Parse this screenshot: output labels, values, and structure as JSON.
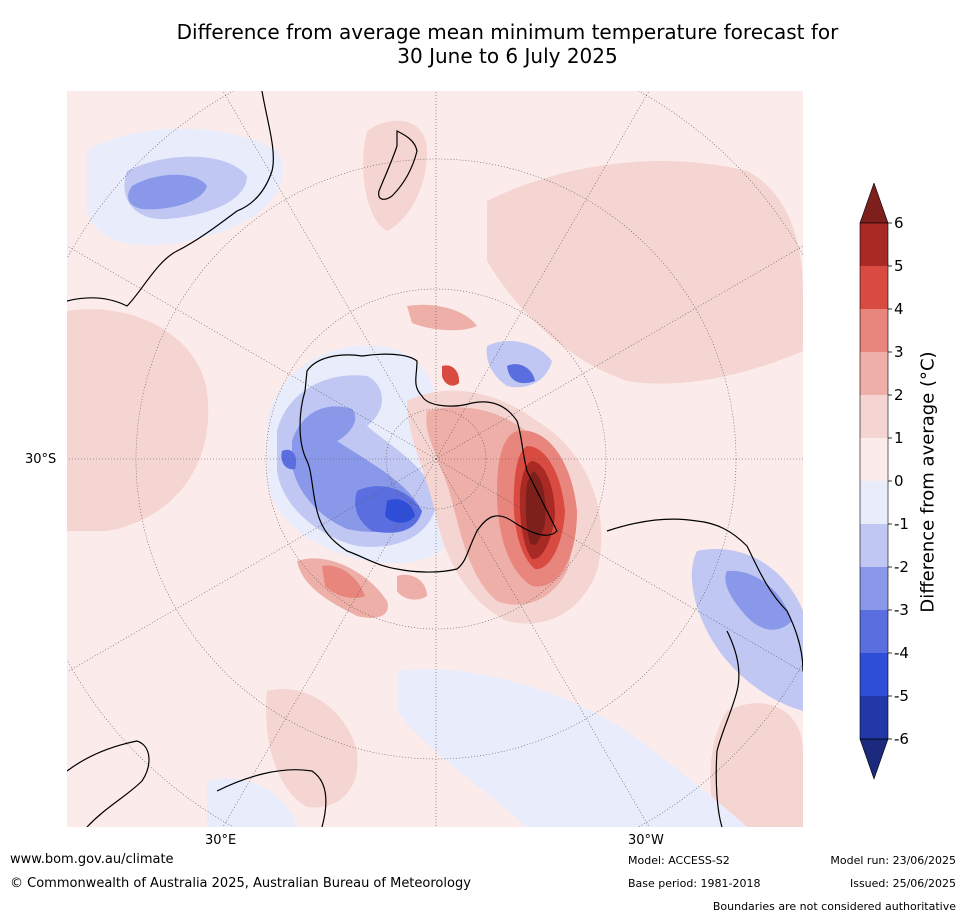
{
  "title": {
    "line1": "Difference from average mean minimum temperature forecast for",
    "line2": "30 June to 6 July 2025"
  },
  "axes": {
    "lat_label": "30°S",
    "lon_label_left": "30°E",
    "lon_label_right": "30°W"
  },
  "colorbar": {
    "label": "Difference from average (°C)",
    "ticks": [
      "6",
      "5",
      "4",
      "3",
      "2",
      "1",
      "0",
      "-1",
      "-2",
      "-3",
      "-4",
      "-5",
      "-6"
    ],
    "colors": [
      "#7d1f1a",
      "#a92a24",
      "#d94b40",
      "#e8857c",
      "#eeafa8",
      "#f5d5d2",
      "#fbeceb",
      "#e9ecfb",
      "#c0c7f2",
      "#8a98ea",
      "#5a6ee0",
      "#2f4ed8",
      "#2338a8",
      "#1b2a7c"
    ]
  },
  "footer": {
    "website": "www.bom.gov.au/climate",
    "copyright": "© Commonwealth of Australia 2025, Australian Bureau of Meteorology",
    "model": "Model: ACCESS-S2",
    "base_period": "Base period: 1981-2018",
    "model_run": "Model run: 23/06/2025",
    "issued": "Issued: 25/06/2025",
    "disclaimer": "Boundaries are not considered authoritative"
  }
}
